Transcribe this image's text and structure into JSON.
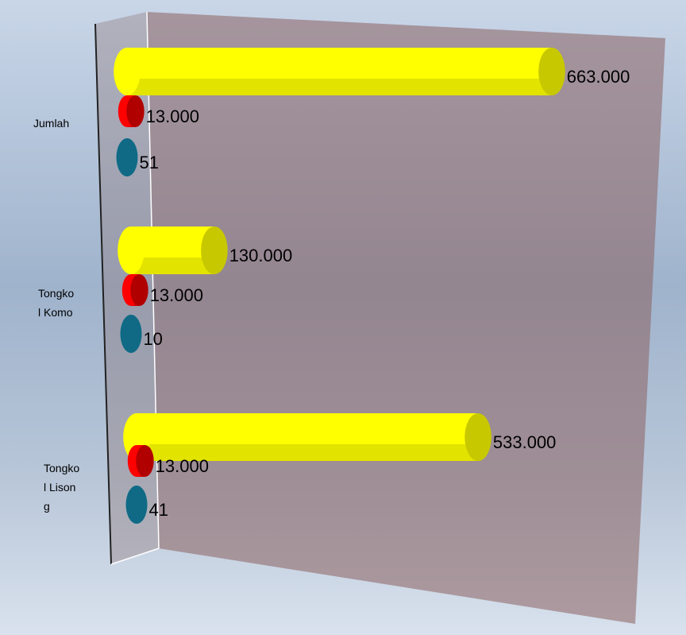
{
  "chart_data": {
    "type": "bar3d",
    "categories": [
      "Jumlah",
      "Tongkol Komo",
      "Tongkol Lisong"
    ],
    "series": [
      {
        "color": "#ffff00",
        "values": [
          663000,
          130000,
          533000
        ],
        "value_labels": [
          "663.000",
          "130.000",
          "533.000"
        ]
      },
      {
        "color": "#ff0000",
        "values": [
          13000,
          13000,
          13000
        ],
        "value_labels": [
          "13.000",
          "13.000",
          "13.000"
        ]
      },
      {
        "color": "#1a8fb0",
        "values": [
          51,
          10,
          41
        ],
        "value_labels": [
          "51",
          "10",
          "41"
        ]
      }
    ],
    "xlim": [
      0,
      663000
    ]
  }
}
